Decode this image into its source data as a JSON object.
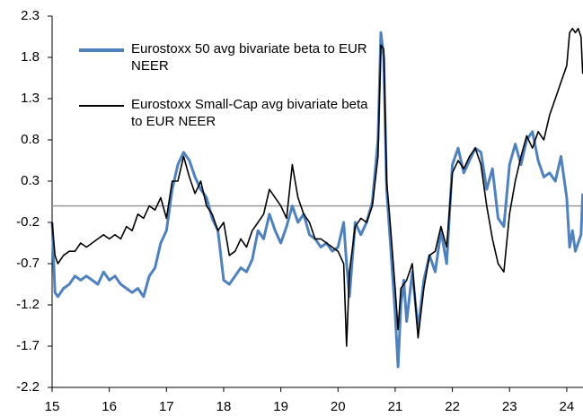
{
  "chart_data": {
    "type": "line",
    "x": [
      15,
      15.05,
      15.1,
      15.2,
      15.3,
      15.4,
      15.5,
      15.6,
      15.7,
      15.8,
      15.9,
      16,
      16.1,
      16.2,
      16.3,
      16.4,
      16.5,
      16.6,
      16.7,
      16.8,
      16.9,
      17,
      17.1,
      17.2,
      17.3,
      17.4,
      17.5,
      17.6,
      17.7,
      17.8,
      17.9,
      18,
      18.1,
      18.2,
      18.3,
      18.4,
      18.5,
      18.6,
      18.7,
      18.8,
      18.9,
      19,
      19.1,
      19.2,
      19.3,
      19.4,
      19.5,
      19.6,
      19.7,
      19.8,
      19.9,
      20,
      20.1,
      20.15,
      20.2,
      20.3,
      20.4,
      20.5,
      20.6,
      20.7,
      20.75,
      20.8,
      20.85,
      20.9,
      21,
      21.05,
      21.1,
      21.15,
      21.2,
      21.3,
      21.4,
      21.5,
      21.6,
      21.7,
      21.8,
      21.9,
      22,
      22.1,
      22.2,
      22.3,
      22.4,
      22.5,
      22.6,
      22.7,
      22.8,
      22.9,
      23,
      23.1,
      23.2,
      23.3,
      23.4,
      23.5,
      23.6,
      23.7,
      23.8,
      23.9,
      24,
      24.05,
      24.1,
      24.15,
      24.2,
      24.25,
      24.28
    ],
    "series": [
      {
        "name": "Eurostoxx 50 avg bivariate beta to EUR NEER",
        "color": "#4f81bd",
        "values": [
          -0.2,
          -1.05,
          -1.1,
          -1.0,
          -0.95,
          -0.85,
          -0.9,
          -0.85,
          -0.9,
          -0.95,
          -0.8,
          -0.9,
          -0.85,
          -0.95,
          -1.0,
          -1.05,
          -1.0,
          -1.1,
          -0.85,
          -0.75,
          -0.45,
          -0.3,
          0.2,
          0.5,
          0.65,
          0.55,
          0.35,
          0.2,
          0.1,
          -0.15,
          -0.3,
          -0.9,
          -0.95,
          -0.85,
          -0.75,
          -0.8,
          -0.65,
          -0.3,
          -0.4,
          -0.1,
          -0.3,
          -0.45,
          -0.25,
          0.0,
          -0.2,
          -0.1,
          -0.35,
          -0.4,
          -0.5,
          -0.45,
          -0.55,
          -0.5,
          -0.2,
          -0.7,
          -1.1,
          -0.2,
          -0.35,
          -0.2,
          0.05,
          0.8,
          2.1,
          1.8,
          0.2,
          -0.3,
          -1.3,
          -1.95,
          -1.2,
          -0.9,
          -1.4,
          -0.8,
          -1.5,
          -0.9,
          -0.6,
          -0.8,
          -0.3,
          -0.7,
          0.5,
          0.7,
          0.4,
          0.55,
          0.7,
          0.65,
          0.2,
          0.45,
          -0.15,
          -0.25,
          0.5,
          0.75,
          0.5,
          0.8,
          0.9,
          0.55,
          0.35,
          0.4,
          0.3,
          0.6,
          0.1,
          -0.5,
          -0.3,
          -0.55,
          -0.45,
          -0.35,
          0.15
        ]
      },
      {
        "name": "Eurostoxx Small-Cap avg bivariate beta to EUR NEER",
        "color": "#000000",
        "values": [
          -0.2,
          -0.6,
          -0.7,
          -0.6,
          -0.55,
          -0.55,
          -0.45,
          -0.5,
          -0.45,
          -0.4,
          -0.35,
          -0.4,
          -0.35,
          -0.4,
          -0.25,
          -0.3,
          -0.1,
          -0.15,
          0.0,
          -0.05,
          0.1,
          -0.15,
          0.3,
          0.3,
          0.6,
          0.35,
          0.15,
          0.3,
          0.0,
          -0.1,
          -0.3,
          -0.2,
          -0.6,
          -0.55,
          -0.4,
          -0.5,
          -0.3,
          -0.2,
          -0.1,
          0.2,
          0.1,
          0.0,
          -0.15,
          0.5,
          0.1,
          -0.1,
          -0.2,
          -0.4,
          -0.4,
          -0.45,
          -0.5,
          -0.55,
          -0.7,
          -1.7,
          -0.8,
          -0.25,
          -0.15,
          -0.2,
          0.0,
          0.6,
          1.95,
          1.9,
          0.3,
          -0.1,
          -1.0,
          -1.5,
          -1.0,
          -0.95,
          -0.9,
          -0.7,
          -1.6,
          -1.0,
          -0.6,
          -0.55,
          -0.25,
          -0.5,
          0.4,
          0.55,
          0.45,
          0.6,
          0.7,
          0.5,
          0.0,
          -0.4,
          -0.7,
          -0.8,
          -0.1,
          0.3,
          0.6,
          0.85,
          0.7,
          0.9,
          0.8,
          1.1,
          1.3,
          1.5,
          1.7,
          2.1,
          2.15,
          2.1,
          2.15,
          2.05,
          1.6
        ]
      }
    ],
    "xlim": [
      15,
      24.3
    ],
    "xticks": [
      15,
      16,
      17,
      18,
      19,
      20,
      21,
      22,
      23,
      24
    ],
    "ylim": [
      -2.2,
      2.3
    ],
    "yticks": [
      2.3,
      1.8,
      1.3,
      0.8,
      0.3,
      -0.2,
      -0.7,
      -1.2,
      -1.7,
      -2.2
    ],
    "grid": false,
    "legend": "upper left"
  }
}
